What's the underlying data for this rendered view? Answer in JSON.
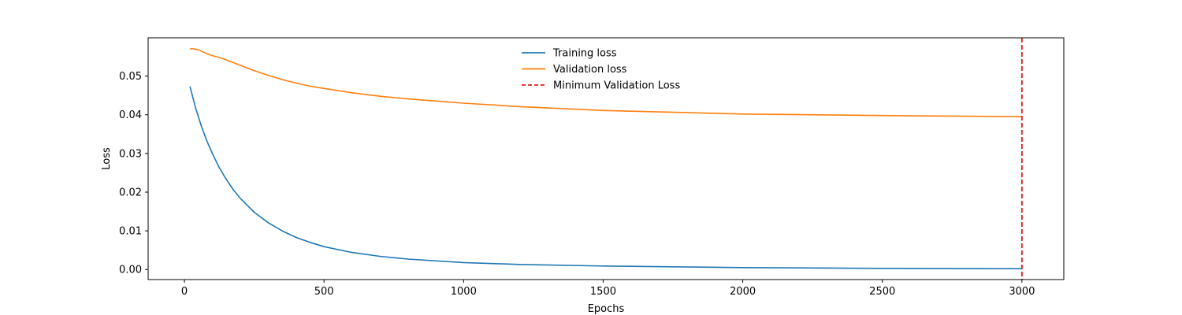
{
  "chart_data": {
    "type": "line",
    "title": "",
    "xlabel": "Epochs",
    "ylabel": "Loss",
    "xlim": [
      -130,
      3150
    ],
    "ylim": [
      -0.0026,
      0.0599
    ],
    "x_ticks": [
      0,
      500,
      1000,
      1500,
      2000,
      2500,
      3000
    ],
    "x_tick_labels": [
      "0",
      "500",
      "1000",
      "1500",
      "2000",
      "2500",
      "3000"
    ],
    "y_ticks": [
      0.0,
      0.01,
      0.02,
      0.03,
      0.04,
      0.05
    ],
    "y_tick_labels": [
      "0.00",
      "0.01",
      "0.02",
      "0.03",
      "0.04",
      "0.05"
    ],
    "grid": false,
    "legend": {
      "placement": "top-center"
    },
    "series": [
      {
        "name": "Training loss",
        "color": "#1f77b4",
        "style": "solid",
        "x": [
          20,
          40,
          60,
          80,
          100,
          125,
          150,
          175,
          200,
          250,
          300,
          350,
          400,
          450,
          500,
          600,
          700,
          800,
          1000,
          1200,
          1500,
          2000,
          2500,
          3000
        ],
        "y": [
          0.0473,
          0.0418,
          0.0372,
          0.0333,
          0.03,
          0.0263,
          0.0233,
          0.0206,
          0.0184,
          0.0148,
          0.0121,
          0.01,
          0.0083,
          0.007,
          0.0059,
          0.0044,
          0.0034,
          0.0027,
          0.0018,
          0.0013,
          0.0009,
          0.0005,
          0.0003,
          0.0002
        ]
      },
      {
        "name": "Validation loss",
        "color": "#ff7f0e",
        "style": "solid",
        "x": [
          20,
          35,
          50,
          65,
          80,
          100,
          125,
          150,
          200,
          250,
          300,
          350,
          400,
          450,
          500,
          600,
          700,
          800,
          1000,
          1200,
          1500,
          2000,
          2500,
          3000
        ],
        "y": [
          0.0571,
          0.057,
          0.0568,
          0.0563,
          0.0558,
          0.0553,
          0.0548,
          0.0542,
          0.0528,
          0.0514,
          0.0502,
          0.0491,
          0.0482,
          0.0474,
          0.0468,
          0.0457,
          0.0448,
          0.0441,
          0.043,
          0.0421,
          0.0411,
          0.0402,
          0.0398,
          0.0395
        ]
      }
    ],
    "vlines": [
      {
        "name": "Minimum Validation Loss",
        "x": 3000,
        "color": "#e41a1c",
        "style": "dashed"
      }
    ]
  }
}
